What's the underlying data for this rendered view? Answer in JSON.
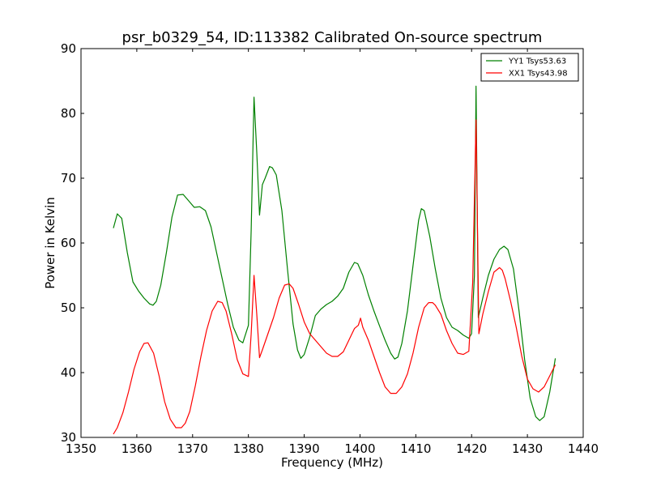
{
  "chart_data": {
    "type": "line",
    "title": "psr_b0329_54, ID:113382 Calibrated On-source spectrum",
    "xlabel": "Frequency (MHz)",
    "ylabel": "Power in Kelvin",
    "xlim": [
      1350,
      1440
    ],
    "ylim": [
      30,
      90
    ],
    "x_ticks": [
      1350,
      1360,
      1370,
      1380,
      1390,
      1400,
      1410,
      1420,
      1430,
      1440
    ],
    "y_ticks": [
      30,
      40,
      50,
      60,
      70,
      80,
      90
    ],
    "grid": false,
    "legend_position": "top-right",
    "series": [
      {
        "name": "YY1 Tsys53.63",
        "color": "#008000",
        "x": [
          1355.8,
          1356.5,
          1357.3,
          1358.3,
          1359.3,
          1360.3,
          1361.3,
          1362.3,
          1362.9,
          1363.5,
          1364.3,
          1365.3,
          1366.3,
          1367.3,
          1368.3,
          1369.3,
          1370.3,
          1371.3,
          1372.3,
          1373.3,
          1374.3,
          1375.3,
          1376.3,
          1377.3,
          1378.3,
          1379.0,
          1380.0,
          1380.5,
          1381.0,
          1381.5,
          1382.0,
          1382.5,
          1383.0,
          1383.8,
          1384.3,
          1385.0,
          1386.0,
          1387.0,
          1388.0,
          1388.8,
          1389.4,
          1390.0,
          1391.0,
          1392.0,
          1393.0,
          1394.0,
          1395.0,
          1396.0,
          1397.0,
          1398.0,
          1399.0,
          1399.6,
          1400.5,
          1401.5,
          1402.5,
          1403.5,
          1404.5,
          1405.5,
          1406.2,
          1406.8,
          1407.5,
          1408.5,
          1409.5,
          1410.5,
          1411.0,
          1411.5,
          1412.5,
          1413.5,
          1414.5,
          1415.5,
          1416.5,
          1417.5,
          1418.5,
          1419.5,
          1420.0,
          1420.5,
          1420.8,
          1421.2,
          1422.0,
          1423.0,
          1424.0,
          1425.0,
          1425.8,
          1426.5,
          1427.5,
          1428.5,
          1429.5,
          1430.5,
          1431.5,
          1432.2,
          1433.0,
          1434.0,
          1435.0
        ],
        "values": [
          62.3,
          64.5,
          63.8,
          58.5,
          54.0,
          52.6,
          51.5,
          50.6,
          50.4,
          51.0,
          53.5,
          58.5,
          64.0,
          67.4,
          67.5,
          66.5,
          65.5,
          65.6,
          65.0,
          62.5,
          58.5,
          54.5,
          50.5,
          47.0,
          45.0,
          44.6,
          47.3,
          62.0,
          82.5,
          74.0,
          64.3,
          69.0,
          70.0,
          71.8,
          71.6,
          70.5,
          65.0,
          56.0,
          47.5,
          43.5,
          42.2,
          42.8,
          45.5,
          48.8,
          49.8,
          50.5,
          51.0,
          51.8,
          53.0,
          55.5,
          57.0,
          56.8,
          55.0,
          52.0,
          49.5,
          47.2,
          45.0,
          43.0,
          42.1,
          42.4,
          44.5,
          49.5,
          56.5,
          63.5,
          65.3,
          65.0,
          61.0,
          56.0,
          51.5,
          48.5,
          47.0,
          46.5,
          45.8,
          45.3,
          46.0,
          55.0,
          84.2,
          48.5,
          51.5,
          55.0,
          57.5,
          59.0,
          59.5,
          59.0,
          56.0,
          49.5,
          42.0,
          36.0,
          33.2,
          32.6,
          33.2,
          37.0,
          42.2
        ]
      },
      {
        "name": "XX1 Tsys43.98",
        "color": "#ff0000",
        "x": [
          1355.8,
          1356.5,
          1357.5,
          1358.5,
          1359.5,
          1360.5,
          1361.3,
          1362.0,
          1363.0,
          1364.0,
          1365.0,
          1366.0,
          1367.0,
          1368.0,
          1368.7,
          1369.5,
          1370.5,
          1371.5,
          1372.5,
          1373.5,
          1374.5,
          1375.3,
          1376.0,
          1377.0,
          1378.0,
          1379.0,
          1380.0,
          1380.5,
          1381.0,
          1381.5,
          1382.0,
          1382.5,
          1383.5,
          1384.5,
          1385.5,
          1386.5,
          1387.3,
          1388.0,
          1389.0,
          1390.0,
          1391.0,
          1392.0,
          1393.0,
          1394.0,
          1395.0,
          1396.0,
          1397.0,
          1398.0,
          1399.0,
          1399.7,
          1400.1,
          1400.5,
          1401.5,
          1402.5,
          1403.5,
          1404.5,
          1405.5,
          1406.5,
          1407.5,
          1408.5,
          1409.5,
          1410.5,
          1411.5,
          1412.3,
          1413.0,
          1413.5,
          1414.5,
          1415.5,
          1416.5,
          1417.5,
          1418.5,
          1419.5,
          1420.2,
          1420.8,
          1421.3,
          1422.0,
          1423.0,
          1424.0,
          1425.0,
          1425.5,
          1426.0,
          1427.0,
          1428.0,
          1429.0,
          1430.0,
          1431.0,
          1432.0,
          1433.0,
          1434.0,
          1435.0
        ],
        "values": [
          30.5,
          31.5,
          33.8,
          37.0,
          40.5,
          43.2,
          44.5,
          44.6,
          43.0,
          39.5,
          35.5,
          32.8,
          31.5,
          31.5,
          32.2,
          34.0,
          38.0,
          42.5,
          46.5,
          49.5,
          51.0,
          50.8,
          49.5,
          46.0,
          42.0,
          39.8,
          39.4,
          46.0,
          55.0,
          49.0,
          42.3,
          43.5,
          46.0,
          48.5,
          51.5,
          53.5,
          53.7,
          53.0,
          50.5,
          47.8,
          46.0,
          45.0,
          44.0,
          43.0,
          42.5,
          42.5,
          43.2,
          45.0,
          46.8,
          47.3,
          48.4,
          47.0,
          45.0,
          42.5,
          40.0,
          37.8,
          36.8,
          36.8,
          37.8,
          39.8,
          43.0,
          47.0,
          50.0,
          50.8,
          50.8,
          50.4,
          49.0,
          46.5,
          44.5,
          43.0,
          42.8,
          43.3,
          54.0,
          79.0,
          46.0,
          49.0,
          52.5,
          55.5,
          56.2,
          55.8,
          54.5,
          51.0,
          47.0,
          42.5,
          39.0,
          37.5,
          37.0,
          37.8,
          39.5,
          41.2
        ]
      }
    ]
  }
}
